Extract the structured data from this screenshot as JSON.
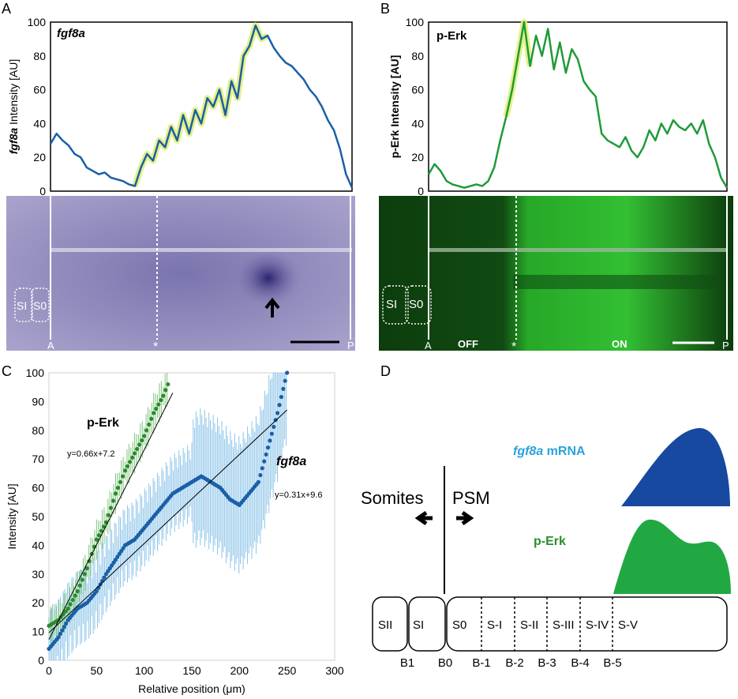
{
  "panels": {
    "A": {
      "letter": "A",
      "title": "fgf8a",
      "ylabel_gene": "fgf8a",
      "ylabel_rest": " Intensity [AU]",
      "yticks": [
        "0",
        "20",
        "40",
        "60",
        "80",
        "100"
      ],
      "labels": {
        "si": "SI",
        "s0": "S0",
        "a": "A",
        "p": "P",
        "star": "*"
      }
    },
    "B": {
      "letter": "B",
      "title": "p-Erk",
      "ylabel": "p-Erk Intensity [AU]",
      "yticks": [
        "0",
        "20",
        "40",
        "60",
        "80",
        "100"
      ],
      "labels": {
        "si": "SI",
        "s0": "S0",
        "a": "A",
        "p": "P",
        "star": "*",
        "off": "OFF",
        "on": "ON"
      }
    },
    "C": {
      "letter": "C"
    },
    "D": {
      "letter": "D",
      "somites": "Somites",
      "psm": "PSM",
      "fgf8a_gene": "fgf8a",
      "fgf8a_rest": " mRNA",
      "perk": "p-Erk",
      "segments": [
        "SII",
        "SI",
        "S0",
        "S-I",
        "S-II",
        "S-III",
        "S-IV",
        "S-V"
      ],
      "boundaries": [
        "B1",
        "B0",
        "B-1",
        "B-2",
        "B-3",
        "B-4",
        "B-5"
      ]
    }
  },
  "colors": {
    "fgf8a": "#1a5fa8",
    "perk": "#1f9a3a",
    "fgf8a_label": "#2aa3dc",
    "perk_label": "#2a8f2a",
    "highlight": "#e2f07a",
    "fgf8a_fill": "#1849a0",
    "perk_fill": "#22a843"
  },
  "chart_data": [
    {
      "type": "line",
      "panel": "A",
      "title": "fgf8a",
      "ylabel": "fgf8a Intensity [AU]",
      "ylim": [
        0,
        100
      ],
      "series": [
        {
          "name": "fgf8a",
          "x": [
            0,
            2,
            4,
            6,
            8,
            10,
            12,
            14,
            16,
            18,
            20,
            22,
            24,
            26,
            28,
            30,
            32,
            34,
            36,
            38,
            40,
            42,
            44,
            46,
            48,
            50,
            52,
            54,
            56,
            58,
            60,
            62,
            64,
            66,
            68,
            70,
            72,
            74,
            76,
            78,
            80,
            82,
            84,
            86,
            88,
            90,
            92,
            94,
            96,
            98,
            100
          ],
          "values": [
            28,
            34,
            30,
            27,
            22,
            20,
            14,
            12,
            10,
            11,
            8,
            7,
            6,
            4,
            3,
            14,
            22,
            18,
            30,
            26,
            38,
            30,
            45,
            34,
            48,
            40,
            55,
            50,
            60,
            45,
            65,
            55,
            80,
            86,
            98,
            90,
            92,
            85,
            80,
            76,
            74,
            70,
            66,
            60,
            56,
            50,
            42,
            36,
            25,
            10,
            2
          ]
        }
      ]
    },
    {
      "type": "line",
      "panel": "B",
      "title": "p-Erk",
      "ylabel": "p-Erk Intensity [AU]",
      "ylim": [
        0,
        100
      ],
      "series": [
        {
          "name": "p-Erk",
          "x": [
            0,
            2,
            4,
            6,
            8,
            10,
            12,
            14,
            16,
            18,
            20,
            22,
            24,
            26,
            28,
            30,
            32,
            34,
            36,
            38,
            40,
            42,
            44,
            46,
            48,
            50,
            52,
            54,
            56,
            58,
            60,
            62,
            64,
            66,
            68,
            70,
            72,
            74,
            76,
            78,
            80,
            82,
            84,
            86,
            88,
            90,
            92,
            94,
            96,
            98,
            100
          ],
          "values": [
            10,
            16,
            12,
            6,
            4,
            3,
            2,
            3,
            4,
            3,
            6,
            14,
            30,
            44,
            60,
            80,
            100,
            74,
            92,
            80,
            96,
            72,
            88,
            70,
            84,
            78,
            65,
            60,
            56,
            34,
            30,
            28,
            26,
            32,
            24,
            20,
            26,
            36,
            30,
            40,
            34,
            42,
            38,
            36,
            40,
            34,
            42,
            28,
            20,
            8,
            2
          ]
        }
      ]
    },
    {
      "type": "scatter",
      "panel": "C",
      "xlabel": "Relative position (μm)",
      "ylabel": "Intensity [AU]",
      "xlim": [
        0,
        300
      ],
      "ylim": [
        0,
        100
      ],
      "xticks": [
        "0",
        "50",
        "100",
        "150",
        "200",
        "250",
        "300"
      ],
      "yticks": [
        "0",
        "10",
        "20",
        "30",
        "40",
        "50",
        "60",
        "70",
        "80",
        "90",
        "100"
      ],
      "series": [
        {
          "name": "p-Erk",
          "equation": "y=0.66x+7.2",
          "x": [
            0,
            10,
            20,
            30,
            40,
            50,
            60,
            70,
            80,
            90,
            100,
            110,
            120,
            125
          ],
          "y": [
            12,
            14,
            18,
            24,
            32,
            42,
            48,
            58,
            66,
            72,
            78,
            86,
            92,
            96
          ]
        },
        {
          "name": "fgf8a",
          "equation": "y=0.31x+9.6",
          "x": [
            0,
            10,
            20,
            30,
            40,
            50,
            60,
            70,
            80,
            90,
            100,
            110,
            120,
            130,
            140,
            150,
            160,
            170,
            180,
            190,
            200,
            210,
            220,
            230,
            240,
            250
          ],
          "y": [
            4,
            8,
            14,
            18,
            20,
            24,
            30,
            35,
            40,
            42,
            46,
            50,
            54,
            58,
            60,
            62,
            64,
            62,
            60,
            56,
            54,
            58,
            62,
            74,
            86,
            100
          ]
        }
      ],
      "fits": [
        {
          "slope": 0.66,
          "intercept": 7.2
        },
        {
          "slope": 0.31,
          "intercept": 9.6
        }
      ]
    }
  ]
}
